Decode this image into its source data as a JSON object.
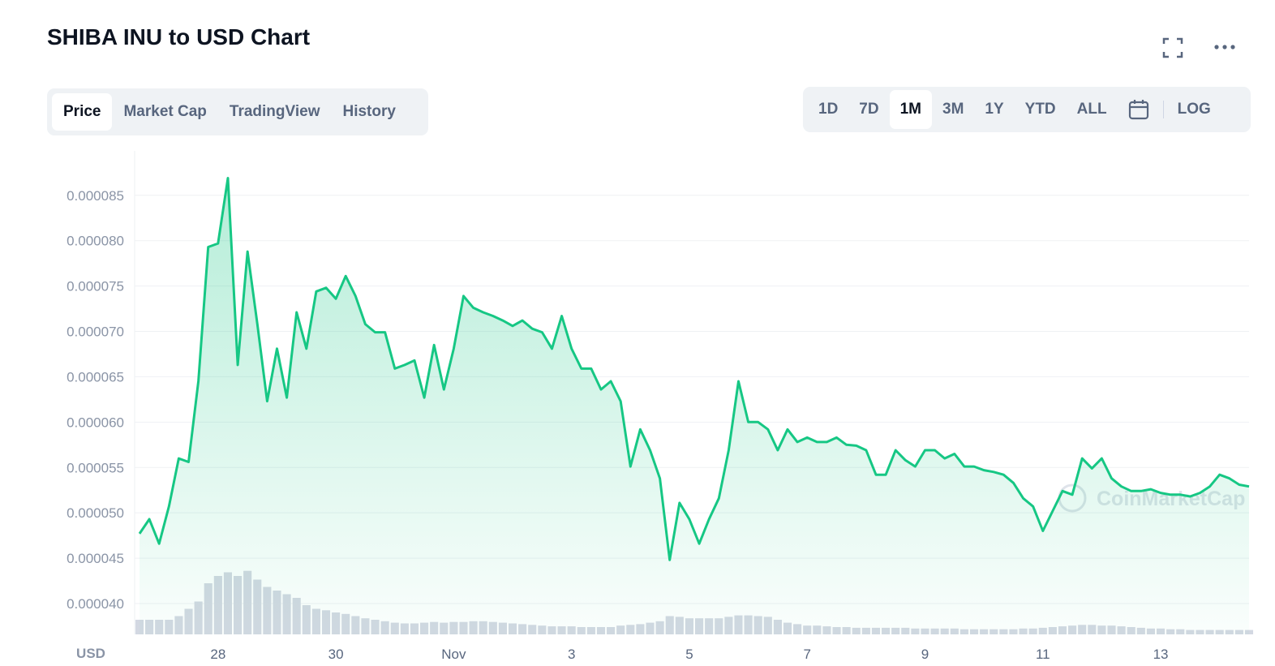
{
  "header": {
    "title": "SHIBA INU to USD Chart"
  },
  "tabs": [
    "Price",
    "Market Cap",
    "TradingView",
    "History"
  ],
  "ranges": [
    "1D",
    "7D",
    "1M",
    "3M",
    "1Y",
    "YTD",
    "ALL"
  ],
  "log_label": "LOG",
  "chart_data": {
    "type": "area",
    "currency_label": "USD",
    "watermark": "CoinMarketCap",
    "color": "#16c784",
    "volume_color": "#d3d8e2",
    "grid": true,
    "ylim": [
      3.66e-05,
      8.99e-05
    ],
    "yticks": [
      {
        "value": 4e-05,
        "label": "0.000040"
      },
      4.5e-05,
      {
        "value": 5e-05,
        "label": "0.000050"
      },
      5.5e-05,
      {
        "value": 6e-05,
        "label": "0.000060"
      },
      6.5e-05,
      {
        "value": 7e-05,
        "label": "0.000070"
      },
      7.5e-05,
      {
        "value": 8e-05,
        "label": "0.000080"
      },
      8.5e-05
    ],
    "categories": [
      null,
      null,
      null,
      null,
      null,
      null,
      null,
      null,
      "28",
      null,
      null,
      null,
      null,
      null,
      null,
      null,
      null,
      null,
      null,
      null,
      "30",
      null,
      null,
      null,
      null,
      null,
      null,
      null,
      null,
      null,
      null,
      null,
      "Nov",
      null,
      null,
      null,
      null,
      null,
      null,
      null,
      null,
      null,
      null,
      null,
      "3",
      null,
      null,
      null,
      null,
      null,
      null,
      null,
      null,
      null,
      null,
      null,
      "5",
      null,
      null,
      null,
      null,
      null,
      null,
      null,
      null,
      null,
      null,
      null,
      "7",
      null,
      null,
      null,
      null,
      null,
      null,
      null,
      null,
      null,
      null,
      null,
      "9",
      null,
      null,
      null,
      null,
      null,
      null,
      null,
      null,
      null,
      null,
      null,
      "11",
      null,
      null,
      null,
      null,
      null,
      null,
      null,
      null,
      null,
      null,
      null,
      "13",
      null,
      null,
      null,
      null,
      null,
      null,
      null,
      null,
      null
    ],
    "values": [
      4.77e-05,
      4.93e-05,
      4.66e-05,
      5.07e-05,
      5.6e-05,
      5.56e-05,
      6.45e-05,
      7.93e-05,
      7.97e-05,
      8.69e-05,
      6.63e-05,
      7.88e-05,
      7.08e-05,
      6.23e-05,
      6.81e-05,
      6.27e-05,
      7.21e-05,
      6.81e-05,
      7.44e-05,
      7.48e-05,
      7.36e-05,
      7.61e-05,
      7.39e-05,
      7.08e-05,
      6.99e-05,
      6.99e-05,
      6.59e-05,
      6.63e-05,
      6.68e-05,
      6.27e-05,
      6.85e-05,
      6.36e-05,
      6.81e-05,
      7.39e-05,
      7.26e-05,
      7.21e-05,
      7.17e-05,
      7.12e-05,
      7.06e-05,
      7.12e-05,
      7.03e-05,
      6.99e-05,
      6.81e-05,
      7.17e-05,
      6.81e-05,
      6.59e-05,
      6.59e-05,
      6.36e-05,
      6.45e-05,
      6.23e-05,
      5.51e-05,
      5.92e-05,
      5.69e-05,
      5.38e-05,
      4.48e-05,
      5.11e-05,
      4.93e-05,
      4.66e-05,
      4.93e-05,
      5.16e-05,
      5.69e-05,
      6.45e-05,
      6e-05,
      6e-05,
      5.92e-05,
      5.69e-05,
      5.92e-05,
      5.78e-05,
      5.83e-05,
      5.78e-05,
      5.78e-05,
      5.83e-05,
      5.75e-05,
      5.74e-05,
      5.69e-05,
      5.42e-05,
      5.42e-05,
      5.69e-05,
      5.58e-05,
      5.51e-05,
      5.69e-05,
      5.69e-05,
      5.6e-05,
      5.65e-05,
      5.51e-05,
      5.51e-05,
      5.47e-05,
      5.45e-05,
      5.42e-05,
      5.33e-05,
      5.16e-05,
      5.07e-05,
      4.8e-05,
      5.02e-05,
      5.24e-05,
      5.2e-05,
      5.6e-05,
      5.49e-05,
      5.6e-05,
      5.38e-05,
      5.29e-05,
      5.24e-05,
      5.24e-05,
      5.26e-05,
      5.22e-05,
      5.2e-05,
      5.2e-05,
      5.18e-05,
      5.22e-05,
      5.29e-05,
      5.42e-05,
      5.38e-05,
      5.31e-05,
      5.29e-05
    ],
    "vlim": [
      0,
      100
    ],
    "volume": [
      20,
      20,
      20,
      20,
      25,
      35,
      45,
      70,
      80,
      85,
      80,
      87,
      75,
      65,
      60,
      55,
      50,
      40,
      35,
      33,
      30,
      28,
      25,
      22,
      20,
      18,
      16,
      15,
      15,
      16,
      17,
      16,
      17,
      17,
      18,
      18,
      17,
      16,
      15,
      14,
      13,
      12,
      11,
      11,
      11,
      10,
      10,
      10,
      10,
      12,
      13,
      14,
      16,
      18,
      25,
      24,
      22,
      22,
      22,
      22,
      24,
      26,
      26,
      25,
      24,
      20,
      16,
      14,
      12,
      12,
      11,
      10,
      10,
      9,
      9,
      9,
      9,
      9,
      9,
      8,
      8,
      8,
      8,
      8,
      7,
      7,
      7,
      7,
      7,
      7,
      8,
      8,
      9,
      10,
      11,
      12,
      13,
      13,
      12,
      12,
      11,
      10,
      9,
      8,
      8,
      7,
      7,
      6,
      6,
      6,
      6,
      6,
      6,
      6
    ]
  }
}
